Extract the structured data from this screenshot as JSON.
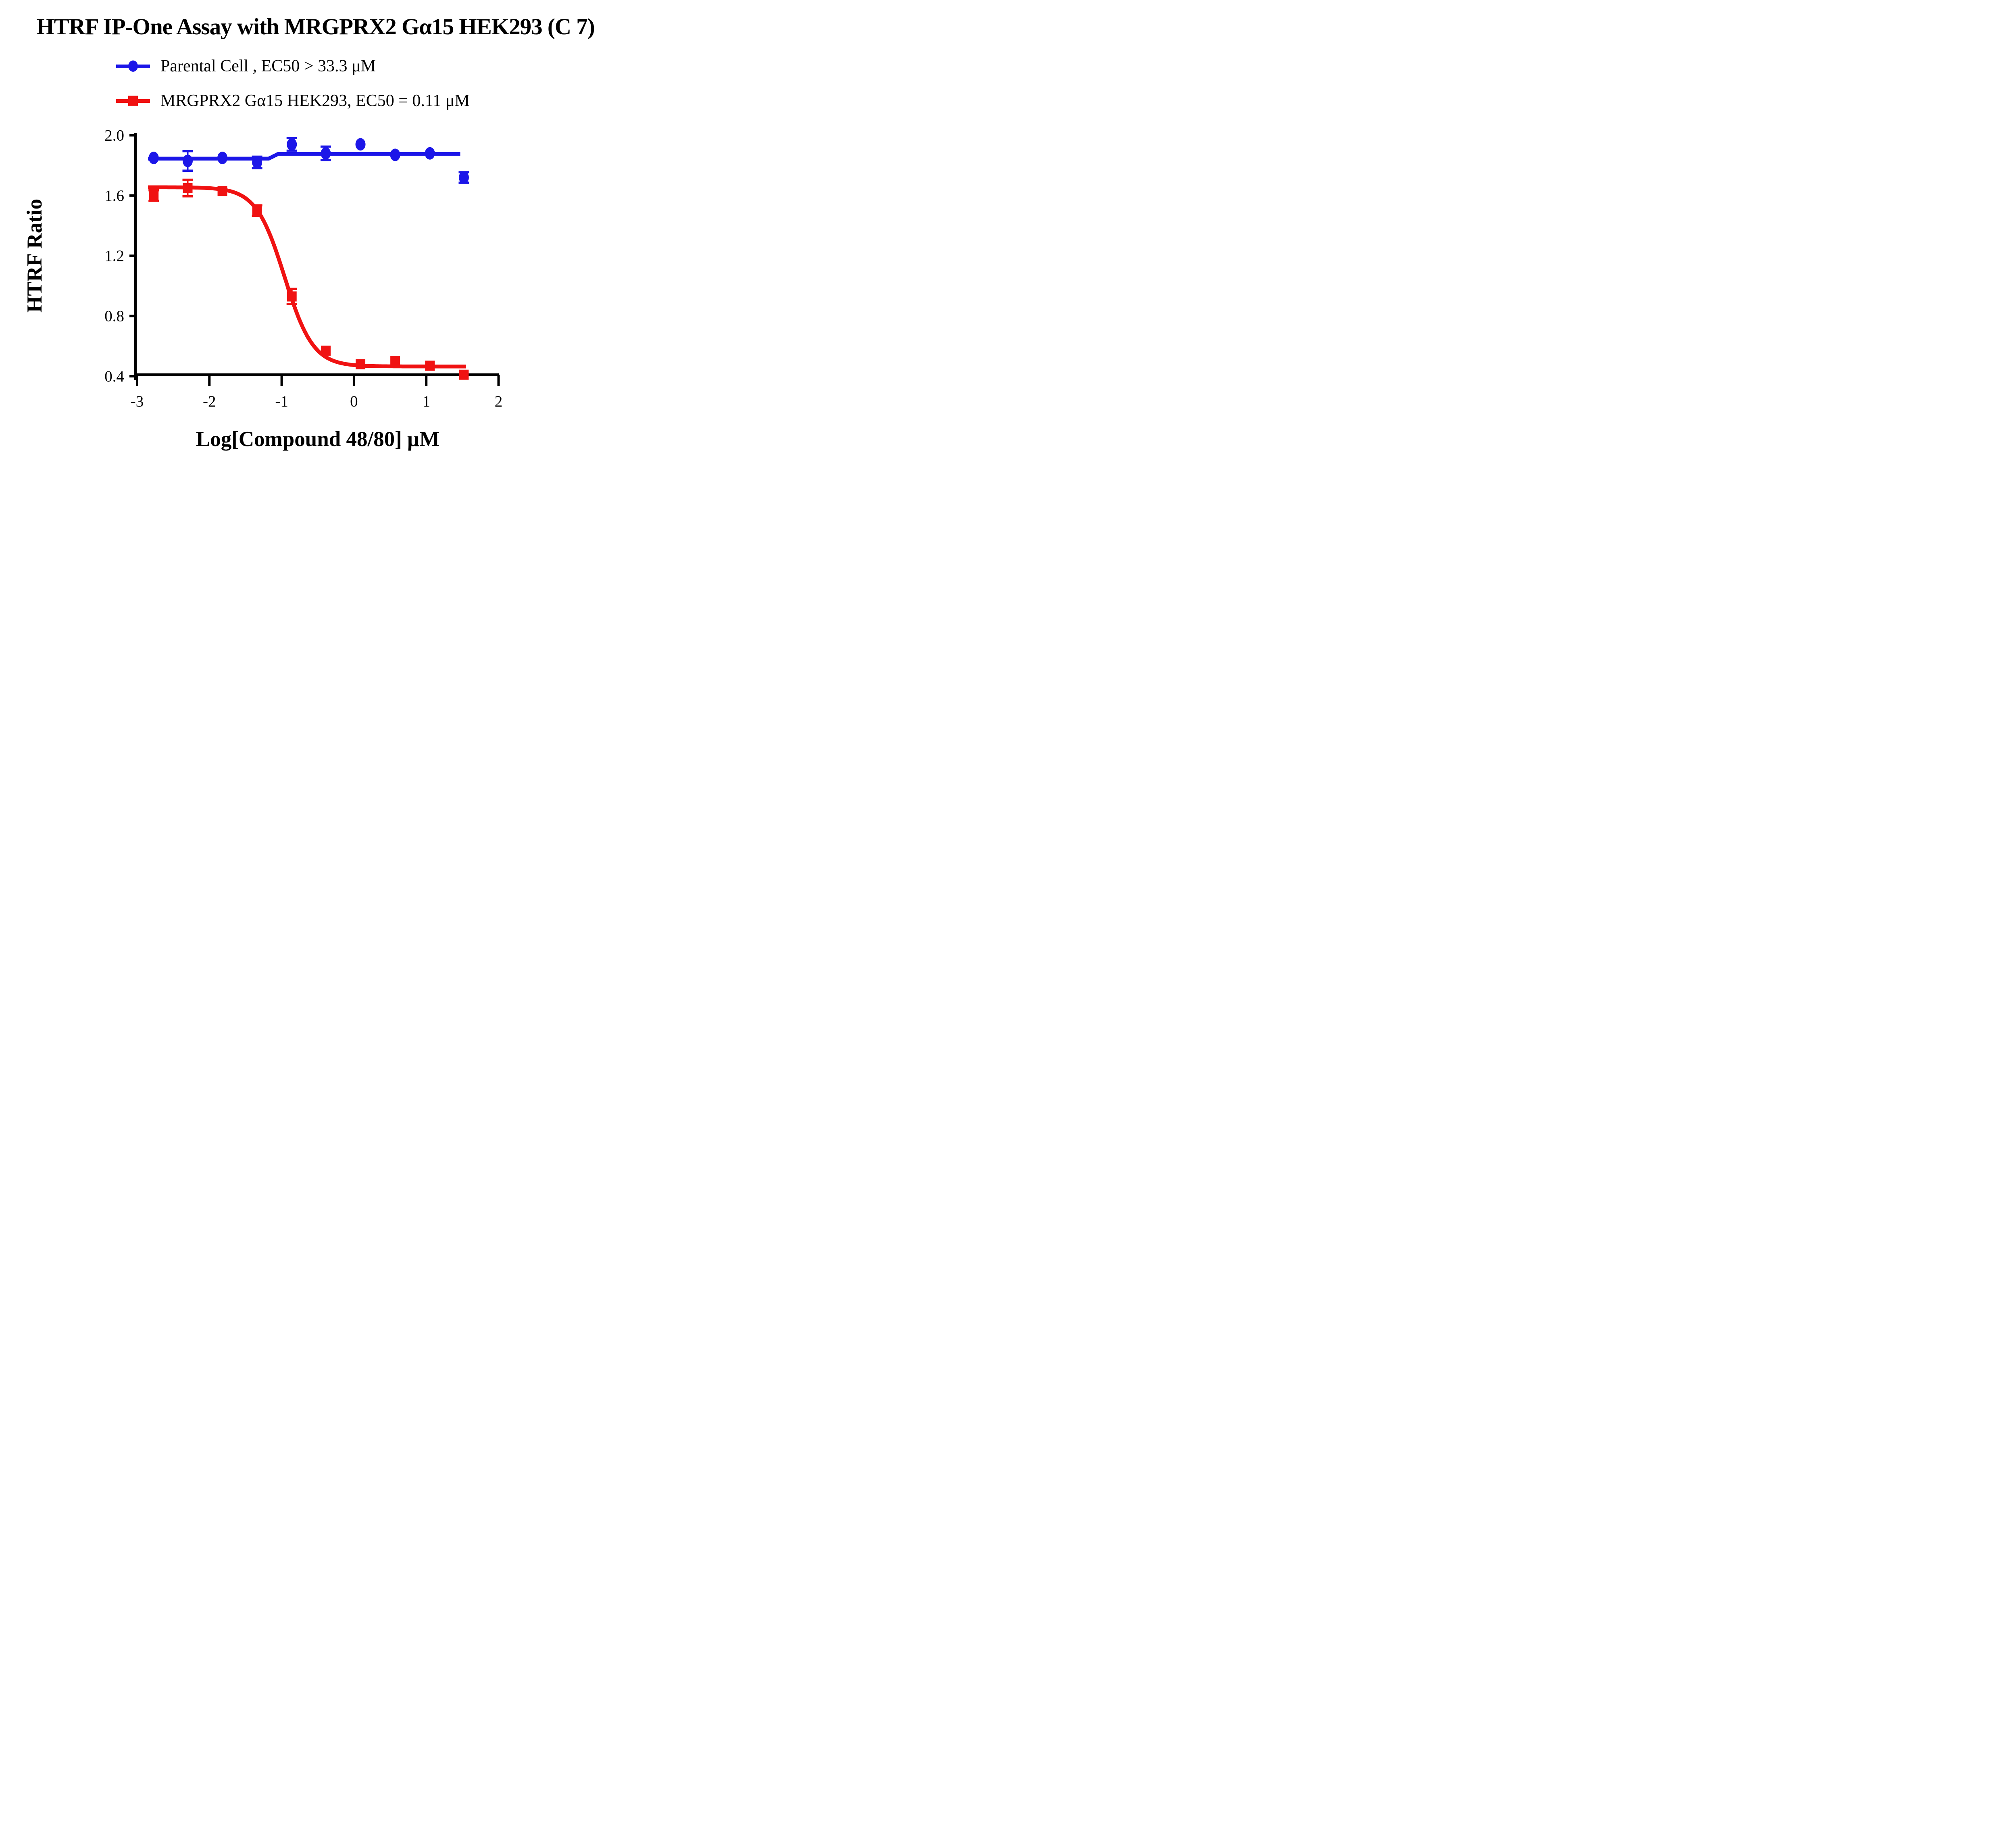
{
  "title": "HTRF IP-One Assay with MRGPRX2 Gα15 HEK293 (C 7)",
  "legend": {
    "items": [
      {
        "name": "Parental Cell",
        "label": "Parental Cell ,  EC50 > 33.3 μM",
        "marker": "circle",
        "color": "#1c16e8"
      },
      {
        "name": "MRGPRX2 Gα15 HEK293",
        "label": "MRGPRX2 Gα15 HEK293,  EC50 = 0.11 μM",
        "marker": "square",
        "color": "#f01212"
      }
    ]
  },
  "chart_data": {
    "type": "scatter",
    "title": "HTRF IP-One Assay with MRGPRX2 Gα15 HEK293 (C 7)",
    "xlabel": "Log[Compound 48/80] μM",
    "ylabel": "HTRF Ratio",
    "xlim": [
      -3,
      2
    ],
    "ylim": [
      0.4,
      2.0
    ],
    "grid": false,
    "legend_position": "top-left",
    "xticks": [
      {
        "v": -3,
        "label": "-3"
      },
      {
        "v": -2,
        "label": "-2"
      },
      {
        "v": -1,
        "label": "-1"
      },
      {
        "v": 0,
        "label": "0"
      },
      {
        "v": 1,
        "label": "1"
      },
      {
        "v": 2,
        "label": "2"
      }
    ],
    "yticks": [
      {
        "v": 2.0,
        "label": "2.0"
      },
      {
        "v": 1.6,
        "label": "1.6"
      },
      {
        "v": 1.2,
        "label": "1.2"
      },
      {
        "v": 0.8,
        "label": "0.8"
      },
      {
        "v": 0.4,
        "label": "0.4"
      }
    ],
    "series": [
      {
        "key": "parental",
        "name": "Parental Cell",
        "ec50_text": "EC50 > 33.3 μM",
        "color": "#1c16e8",
        "marker": "circle",
        "x": [
          -2.77,
          -2.3,
          -1.82,
          -1.34,
          -0.86,
          -0.39,
          0.09,
          0.57,
          1.05,
          1.52
        ],
        "y": [
          1.85,
          1.83,
          1.85,
          1.82,
          1.94,
          1.88,
          1.94,
          1.87,
          1.88,
          1.72
        ],
        "err": [
          0,
          0.065,
          0,
          0.038,
          0.042,
          0.045,
          0,
          0,
          0,
          0.035
        ],
        "fit": {
          "type": "segments",
          "points": [
            [
              -2.85,
              1.845
            ],
            [
              -1.18,
              1.845
            ],
            [
              -1.05,
              1.876
            ],
            [
              1.47,
              1.876
            ]
          ]
        }
      },
      {
        "key": "mrgprx2",
        "name": "MRGPRX2 Gα15 HEK293",
        "ec50_text": "EC50 = 0.11 μM",
        "color": "#f01212",
        "marker": "square",
        "x": [
          -2.77,
          -2.3,
          -1.82,
          -1.34,
          -0.86,
          -0.39,
          0.09,
          0.57,
          1.05,
          1.52
        ],
        "y": [
          1.6,
          1.65,
          1.63,
          1.5,
          0.93,
          0.57,
          0.48,
          0.5,
          0.47,
          0.41
        ],
        "err": [
          0.035,
          0.055,
          0,
          0.035,
          0.05,
          0,
          0,
          0,
          0,
          0
        ],
        "fit": {
          "type": "4pl",
          "top": 1.655,
          "bottom": 0.465,
          "logEC50": -0.96,
          "hill": 2.2,
          "xstart": -2.85,
          "xend": 1.55
        }
      }
    ]
  }
}
